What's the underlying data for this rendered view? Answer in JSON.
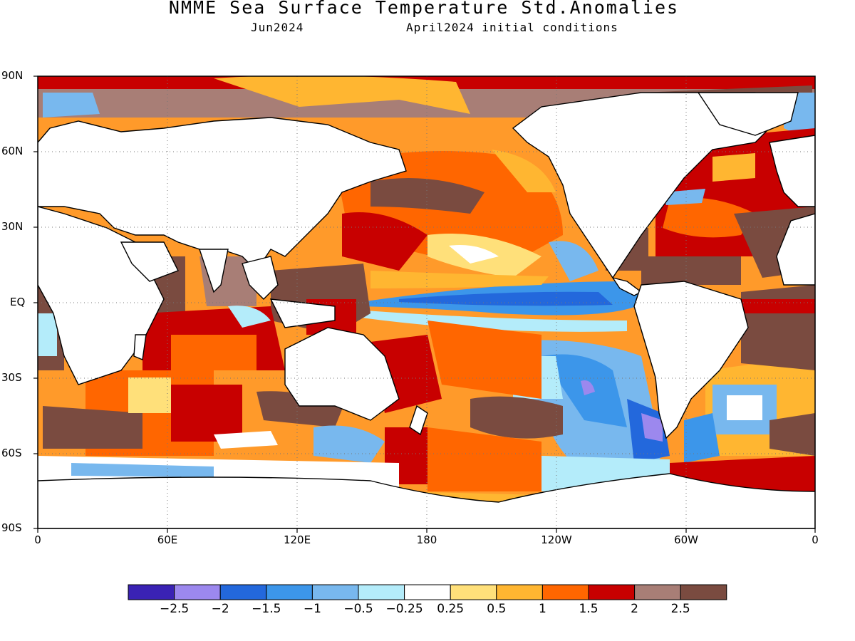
{
  "title": "NMME Sea Surface Temperature Std.Anomalies",
  "subtitle_left": "Jun2024",
  "subtitle_right": "April2024 initial conditions",
  "lat_labels": [
    "90N",
    "60N",
    "30N",
    "EQ",
    "30S",
    "60S",
    "90S"
  ],
  "lon_labels": [
    "0",
    "60E",
    "120E",
    "180",
    "120W",
    "60W",
    "0"
  ],
  "colorbar": {
    "colors": [
      "#3a22b4",
      "#9c88ee",
      "#2368dc",
      "#3c96ea",
      "#78b8ee",
      "#b4ecfa",
      "#ffffff",
      "#ffe07a",
      "#ffb631",
      "#ff6600",
      "#c80000",
      "#a87e76",
      "#7a4b40"
    ],
    "labels": [
      "−2.5",
      "−2",
      "−1.5",
      "−1",
      "−0.5",
      "−0.25",
      "0.25",
      "0.5",
      "1",
      "1.5",
      "2",
      "2.5"
    ]
  },
  "land_color": "#ffffff",
  "grid": "dotted"
}
